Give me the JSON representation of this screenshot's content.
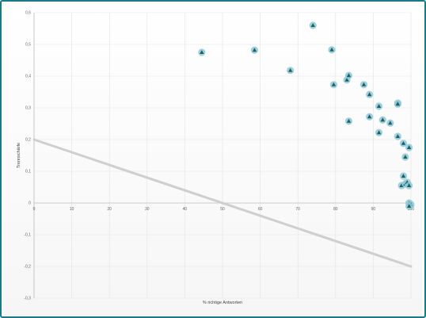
{
  "chart_data": {
    "type": "scatter",
    "xlabel": "% richtige Antworten",
    "ylabel": "Trennschärfe",
    "xlim": [
      0,
      100
    ],
    "ylim": [
      -0.3,
      0.6
    ],
    "x_ticks": [
      "0",
      "10",
      "20",
      "30",
      "40",
      "50",
      "60",
      "70",
      "80",
      "90",
      "100"
    ],
    "y_ticks": [
      "0,6",
      "0,5",
      "0,4",
      "0,3",
      "0,2",
      "0,1",
      "0",
      "-0,1",
      "-0,2",
      "-0,3"
    ],
    "grid": true,
    "point_color": "#1b5f6e",
    "point_halo_color": "#8ec9d3",
    "line_color": "#cfcfcf",
    "series": [
      {
        "marker": "triangle",
        "points": [
          [
            44.5,
            0.475
          ],
          [
            58.5,
            0.482
          ],
          [
            68,
            0.418
          ],
          [
            74,
            0.56
          ],
          [
            79,
            0.483
          ],
          [
            79.5,
            0.373
          ],
          [
            83,
            0.388
          ],
          [
            83.5,
            0.402
          ],
          [
            83.5,
            0.258
          ],
          [
            87.5,
            0.373
          ],
          [
            89,
            0.342
          ],
          [
            89,
            0.272
          ],
          [
            91.5,
            0.305
          ],
          [
            91.5,
            0.222
          ],
          [
            92.5,
            0.262
          ],
          [
            94.5,
            0.252
          ],
          [
            96.5,
            0.315
          ],
          [
            96.5,
            0.312
          ],
          [
            96.5,
            0.21
          ],
          [
            98,
            0.188
          ],
          [
            98.5,
            0.145
          ],
          [
            99.5,
            0.175
          ],
          [
            97.5,
            0.055
          ],
          [
            98,
            0.085
          ],
          [
            98.5,
            0.06
          ],
          [
            99,
            0.065
          ],
          [
            99.5,
            0.055
          ],
          [
            99.5,
            0.0
          ],
          [
            100,
            -0.005
          ],
          [
            99.5,
            -0.01
          ]
        ]
      },
      {
        "type": "line",
        "points": [
          [
            0,
            0.2
          ],
          [
            100,
            -0.2
          ]
        ]
      }
    ]
  }
}
